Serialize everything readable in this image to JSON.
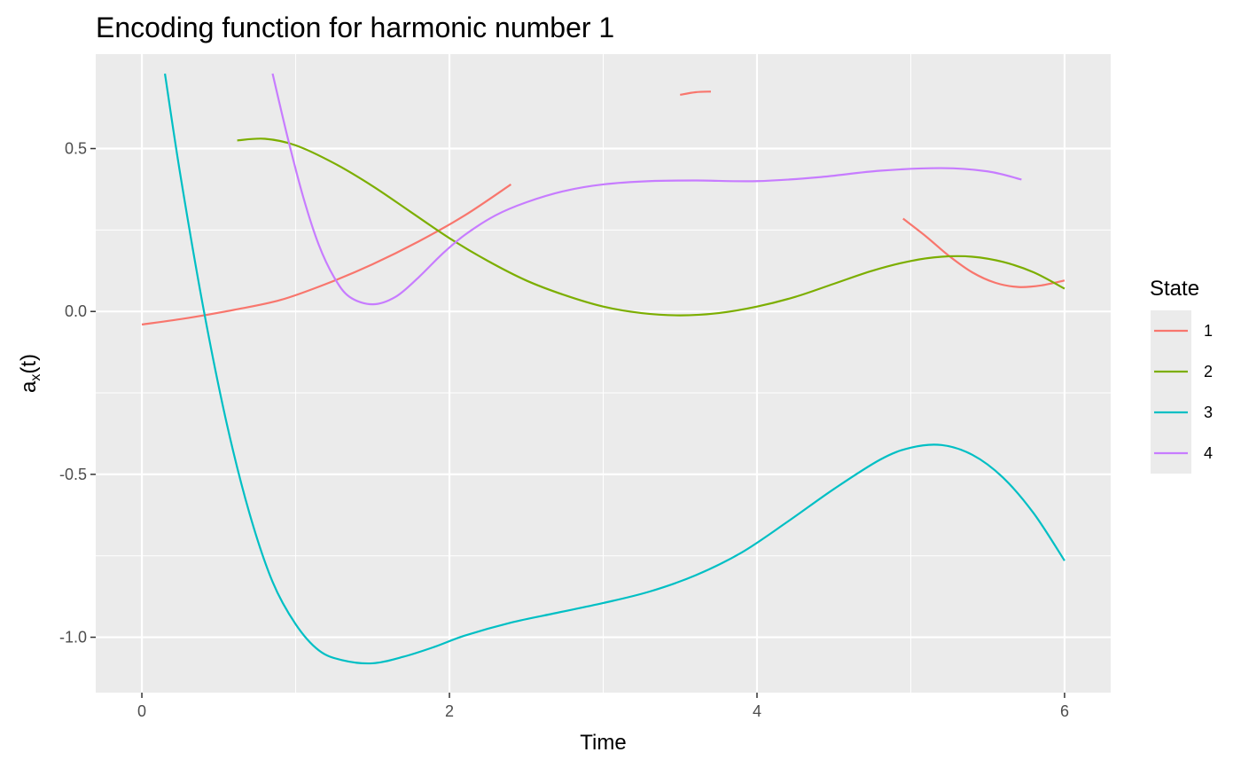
{
  "chart_data": {
    "type": "line",
    "title": "Encoding function for harmonic number 1",
    "xlabel": "Time",
    "ylabel_main": "a",
    "ylabel_sub": "x",
    "ylabel_tail": "(t)",
    "xlim": [
      -0.3,
      6.3
    ],
    "ylim": [
      -1.17,
      0.79
    ],
    "x_ticks": [
      0,
      2,
      4,
      6
    ],
    "x_tick_labels": [
      "0",
      "2",
      "4",
      "6"
    ],
    "x_minor": [
      1,
      3,
      5
    ],
    "y_ticks": [
      -1.0,
      -0.5,
      0.0,
      0.5
    ],
    "y_tick_labels": [
      "-1.0",
      "-0.5",
      "0.0",
      "0.5"
    ],
    "y_minor": [
      -0.75,
      -0.25,
      0.25
    ],
    "grid": true,
    "legend": {
      "title": "State",
      "position": "right",
      "entries": [
        "1",
        "2",
        "3",
        "4"
      ]
    },
    "colors": {
      "panel_bg": "#ebebeb",
      "grid": "#ffffff",
      "legend_key_bg": "#ebebeb"
    },
    "series": [
      {
        "name": "1",
        "color": "#f8766d",
        "segments": [
          {
            "x": [
              0.0,
              0.3,
              0.6,
              0.9,
              1.2,
              1.5,
              1.8,
              2.1,
              2.4
            ],
            "y": [
              -0.04,
              -0.02,
              0.005,
              0.035,
              0.085,
              0.145,
              0.215,
              0.295,
              0.39
            ]
          },
          {
            "x": [
              3.5,
              3.6,
              3.7
            ],
            "y": [
              0.665,
              0.673,
              0.675
            ]
          },
          {
            "x": [
              4.95,
              5.1,
              5.25,
              5.4,
              5.55,
              5.7,
              5.85,
              6.0
            ],
            "y": [
              0.285,
              0.23,
              0.17,
              0.12,
              0.088,
              0.075,
              0.08,
              0.095
            ]
          }
        ]
      },
      {
        "name": "2",
        "color": "#7cae00",
        "segments": [
          {
            "x": [
              0.62,
              0.8,
              1.0,
              1.25,
              1.5,
              1.75,
              2.0,
              2.25,
              2.5,
              2.75,
              3.0,
              3.25,
              3.5,
              3.75,
              4.0,
              4.25,
              4.5,
              4.75,
              5.0,
              5.2,
              5.4,
              5.6,
              5.8,
              6.0
            ],
            "y": [
              0.525,
              0.53,
              0.51,
              0.455,
              0.385,
              0.305,
              0.225,
              0.155,
              0.095,
              0.05,
              0.015,
              -0.005,
              -0.012,
              -0.005,
              0.015,
              0.045,
              0.085,
              0.125,
              0.155,
              0.168,
              0.168,
              0.152,
              0.12,
              0.07
            ]
          }
        ]
      },
      {
        "name": "3",
        "color": "#00bfc4",
        "segments": [
          {
            "x": [
              0.15,
              0.25,
              0.4,
              0.55,
              0.7,
              0.85,
              1.0,
              1.15,
              1.3,
              1.5,
              1.7,
              1.9,
              2.1,
              2.4,
              2.7,
              3.0,
              3.3,
              3.6,
              3.9,
              4.2,
              4.5,
              4.8,
              5.0,
              5.2,
              5.4,
              5.6,
              5.8,
              6.0
            ],
            "y": [
              0.73,
              0.42,
              0.01,
              -0.34,
              -0.62,
              -0.83,
              -0.96,
              -1.04,
              -1.07,
              -1.08,
              -1.06,
              -1.03,
              -0.995,
              -0.955,
              -0.925,
              -0.895,
              -0.86,
              -0.81,
              -0.74,
              -0.645,
              -0.545,
              -0.455,
              -0.418,
              -0.41,
              -0.44,
              -0.51,
              -0.62,
              -0.765
            ]
          }
        ]
      },
      {
        "name": "4",
        "color": "#c77cff",
        "segments": [
          {
            "x": [
              0.85,
              0.95,
              1.05,
              1.15,
              1.25,
              1.35,
              1.5,
              1.65,
              1.8,
              1.95,
              2.1,
              2.3,
              2.5,
              2.75,
              3.0,
              3.3,
              3.6,
              4.0,
              4.4,
              4.8,
              5.2,
              5.5,
              5.72
            ],
            "y": [
              0.73,
              0.53,
              0.35,
              0.205,
              0.105,
              0.045,
              0.022,
              0.045,
              0.105,
              0.175,
              0.235,
              0.295,
              0.335,
              0.37,
              0.39,
              0.4,
              0.402,
              0.4,
              0.412,
              0.432,
              0.44,
              0.43,
              0.405
            ]
          }
        ]
      }
    ]
  }
}
